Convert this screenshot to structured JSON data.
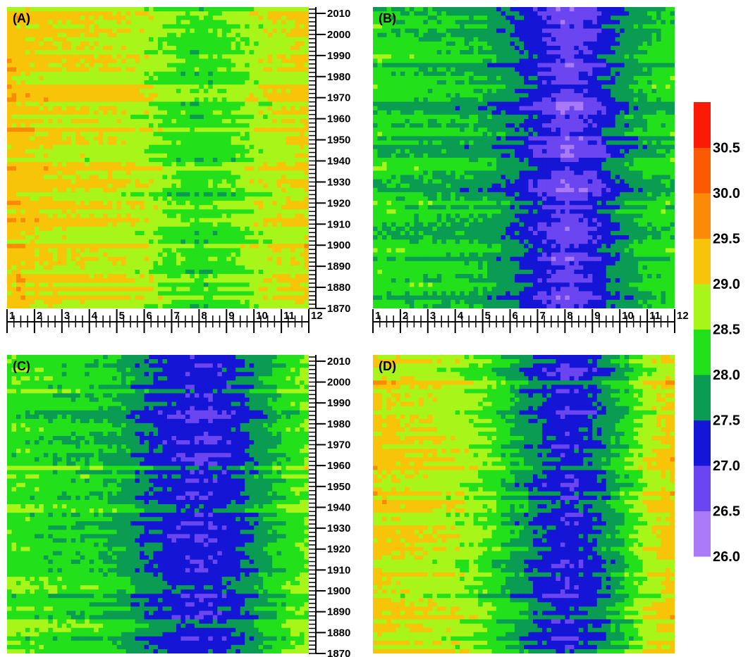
{
  "chart_data": {
    "type": "heatmap",
    "x_axis": {
      "range": [
        1,
        12
      ],
      "ticks": [
        "1",
        "2",
        "3",
        "4",
        "5",
        "6",
        "7",
        "8",
        "9",
        "10",
        "11",
        "12"
      ]
    },
    "y_axis": {
      "range": [
        1870,
        2013
      ],
      "ticks": [
        "1870",
        "1880",
        "1890",
        "1900",
        "1910",
        "1920",
        "1930",
        "1940",
        "1950",
        "1960",
        "1970",
        "1980",
        "1990",
        "2000",
        "2010"
      ]
    },
    "colorbar": {
      "levels": [
        26.0,
        26.5,
        27.0,
        27.5,
        28.0,
        28.5,
        29.0,
        29.5,
        30.0,
        30.5,
        31.0
      ],
      "tick_labels": [
        "26.0",
        "26.5",
        "27.0",
        "27.5",
        "28.0",
        "28.5",
        "29.0",
        "29.5",
        "30.0",
        "30.5"
      ],
      "colors": [
        "#a97af5",
        "#6a45f0",
        "#1515d6",
        "#0a9c52",
        "#22e01a",
        "#a8f51a",
        "#f7c40a",
        "#fa8a07",
        "#fb5a05",
        "#fa1a05"
      ],
      "placement": "right"
    },
    "panels": [
      {
        "label": "(A)",
        "columns": [
          29.25,
          29.1,
          29.0,
          28.95,
          28.9,
          28.8,
          28.4,
          28.25,
          28.35,
          28.7,
          28.9,
          29.05
        ]
      },
      {
        "label": "(B)",
        "columns": [
          28.2,
          28.1,
          28.05,
          28.0,
          27.9,
          27.6,
          27.15,
          26.7,
          27.0,
          27.6,
          28.0,
          28.2
        ]
      },
      {
        "label": "(C)",
        "columns": [
          28.4,
          28.3,
          28.2,
          28.15,
          28.0,
          27.6,
          27.3,
          27.1,
          27.25,
          27.7,
          28.2,
          28.6
        ]
      },
      {
        "label": "(D)",
        "columns": [
          29.1,
          29.0,
          28.9,
          28.8,
          28.5,
          28.0,
          27.5,
          27.1,
          27.4,
          28.0,
          28.8,
          29.2
        ]
      }
    ]
  }
}
